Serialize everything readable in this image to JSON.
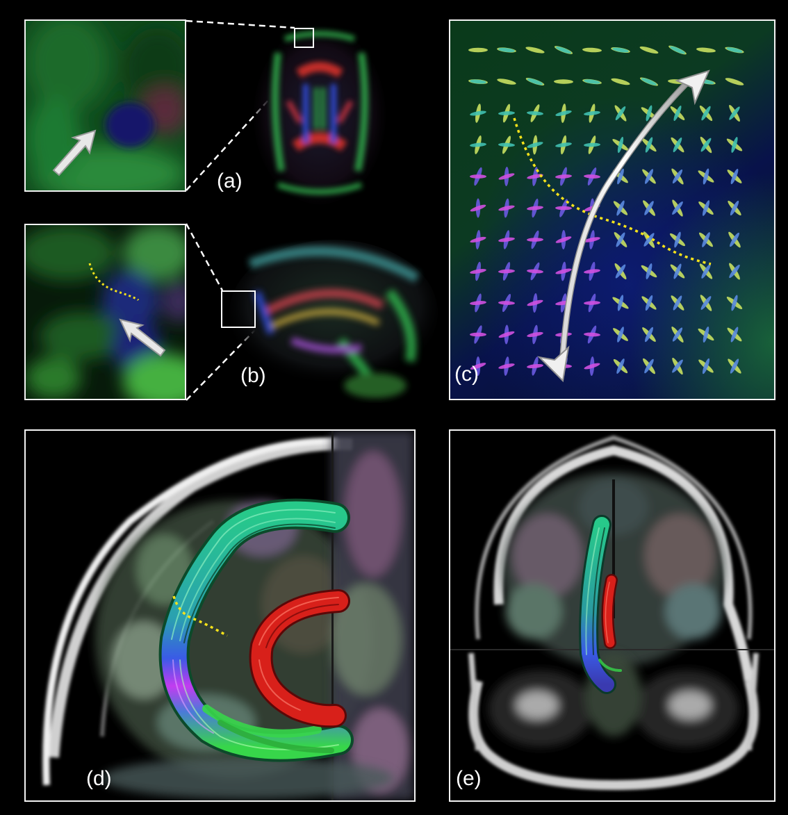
{
  "figure": {
    "background_color": "#000000",
    "frame_color": "#f4f4f4",
    "dotted_line_color": "#f5e21a",
    "streamline_colors": [
      "#27c98a",
      "#3a5be6",
      "#c23cf0",
      "#37d64a",
      "#d8201a"
    ],
    "panels": {
      "a": {
        "label": "(a)",
        "zoom_inset_icon": "white-3d-arrow-icon",
        "description_icon": "axial-dti-slice"
      },
      "b": {
        "label": "(b)",
        "zoom_inset_icon": "white-3d-arrow-icon",
        "description_icon": "sagittal-dti-slice"
      },
      "c": {
        "label": "(c)",
        "description_icon": "fiber-odf-glyph-grid"
      },
      "d": {
        "label": "(d)",
        "description_icon": "sagittal-tractography"
      },
      "e": {
        "label": "(e)",
        "description_icon": "coronal-tractography"
      }
    }
  }
}
